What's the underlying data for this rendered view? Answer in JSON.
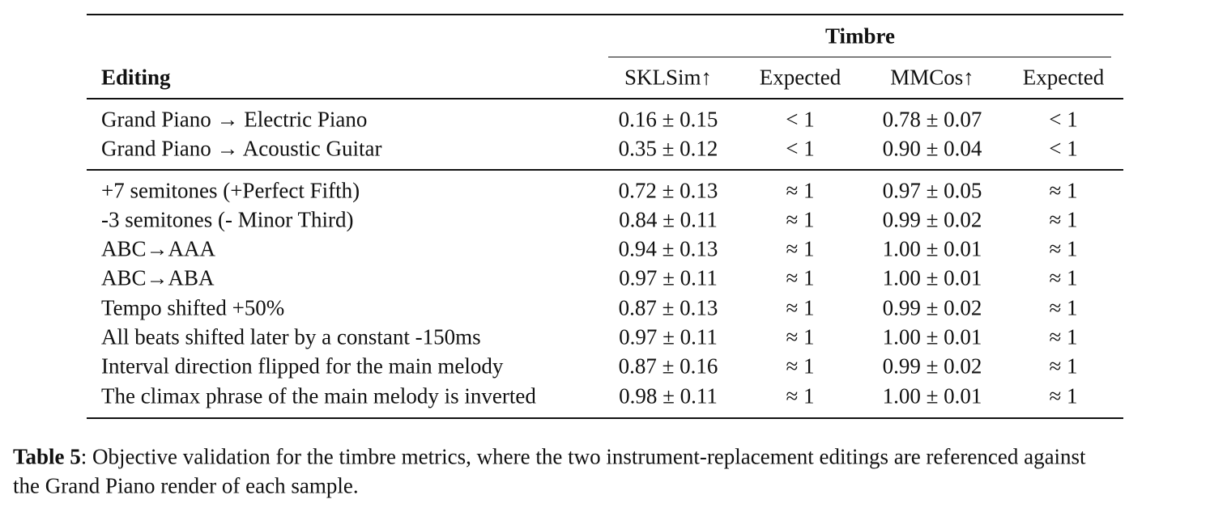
{
  "table": {
    "group_header": "Timbre",
    "columns": [
      "Editing",
      "SKLSim↑",
      "Expected",
      "MMCos↑",
      "Expected"
    ],
    "groups": [
      [
        [
          "Grand Piano → Electric Piano",
          "0.16 ± 0.15",
          "< 1",
          "0.78 ± 0.07",
          "< 1"
        ],
        [
          "Grand Piano → Acoustic Guitar",
          "0.35 ± 0.12",
          "< 1",
          "0.90 ± 0.04",
          "< 1"
        ]
      ],
      [
        [
          "+7 semitones (+Perfect Fifth)",
          "0.72 ± 0.13",
          "≈ 1",
          "0.97 ± 0.05",
          "≈ 1"
        ],
        [
          "-3 semitones (- Minor Third)",
          "0.84 ± 0.11",
          "≈ 1",
          "0.99 ± 0.02",
          "≈ 1"
        ],
        [
          "ABC→AAA",
          "0.94 ± 0.13",
          "≈ 1",
          "1.00 ± 0.01",
          "≈ 1"
        ],
        [
          "ABC→ABA",
          "0.97 ± 0.11",
          "≈ 1",
          "1.00 ± 0.01",
          "≈ 1"
        ],
        [
          "Tempo shifted +50%",
          "0.87 ± 0.13",
          "≈ 1",
          "0.99 ± 0.02",
          "≈ 1"
        ],
        [
          "All beats shifted later by a constant -150ms",
          "0.97 ± 0.11",
          "≈ 1",
          "1.00 ± 0.01",
          "≈ 1"
        ],
        [
          "Interval direction flipped for the main melody",
          "0.87 ± 0.16",
          "≈ 1",
          "0.99 ± 0.02",
          "≈ 1"
        ],
        [
          "The climax phrase of the main melody is inverted",
          "0.98 ± 0.11",
          "≈ 1",
          "1.00 ± 0.01",
          "≈ 1"
        ]
      ]
    ]
  },
  "caption": {
    "label": "Table 5",
    "lines": [
      ": Objective validation for the timbre metrics, where the two instrument-replacement editings are referenced against",
      "the Grand Piano render of each sample."
    ]
  }
}
